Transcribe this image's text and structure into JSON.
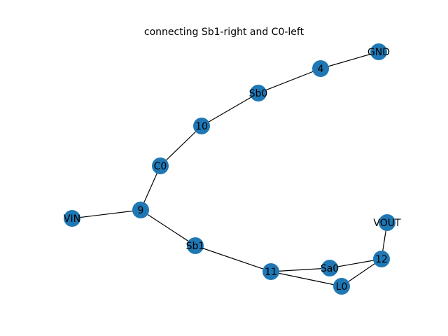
{
  "figure": {
    "title": "connecting Sb1-right and C0-left"
  },
  "colors": {
    "node_fill": "#1f77b4",
    "edge_stroke": "#000000",
    "label_color": "#000000",
    "background": "#ffffff"
  },
  "graph": {
    "nodes": [
      {
        "id": "GND",
        "label": "GND"
      },
      {
        "id": "4",
        "label": "4"
      },
      {
        "id": "Sb0",
        "label": "Sb0"
      },
      {
        "id": "10",
        "label": "10"
      },
      {
        "id": "C0",
        "label": "C0"
      },
      {
        "id": "9",
        "label": "9"
      },
      {
        "id": "VIN",
        "label": "VIN"
      },
      {
        "id": "Sb1",
        "label": "Sb1"
      },
      {
        "id": "11",
        "label": "11"
      },
      {
        "id": "Sa0",
        "label": "Sa0"
      },
      {
        "id": "L0",
        "label": "L0"
      },
      {
        "id": "12",
        "label": "12"
      },
      {
        "id": "VOUT",
        "label": "VOUT"
      }
    ],
    "edges": [
      {
        "source": "GND",
        "target": "4"
      },
      {
        "source": "4",
        "target": "Sb0"
      },
      {
        "source": "Sb0",
        "target": "10"
      },
      {
        "source": "10",
        "target": "C0"
      },
      {
        "source": "C0",
        "target": "9"
      },
      {
        "source": "9",
        "target": "VIN"
      },
      {
        "source": "9",
        "target": "Sb1"
      },
      {
        "source": "Sb1",
        "target": "11"
      },
      {
        "source": "11",
        "target": "Sa0"
      },
      {
        "source": "11",
        "target": "L0"
      },
      {
        "source": "Sa0",
        "target": "12"
      },
      {
        "source": "L0",
        "target": "12"
      },
      {
        "source": "12",
        "target": "VOUT"
      }
    ]
  }
}
